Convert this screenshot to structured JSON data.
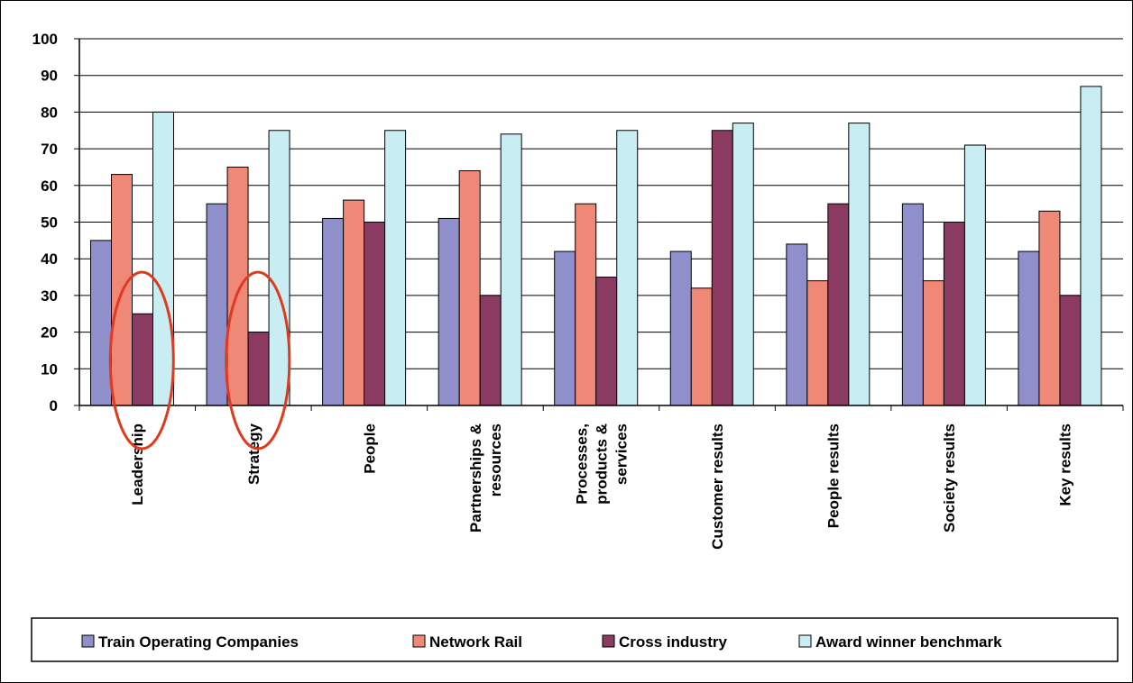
{
  "chart_data": {
    "type": "bar",
    "title": "",
    "xlabel": "",
    "ylabel": "",
    "ylim": [
      0,
      100
    ],
    "yticks": [
      0,
      10,
      20,
      30,
      40,
      50,
      60,
      70,
      80,
      90,
      100
    ],
    "grid": true,
    "legend_position": "bottom",
    "categories": [
      "Leadership",
      "Strategy",
      "People",
      "Partnerships & resources",
      "Processes, products & services",
      "Customer results",
      "People results",
      "Society results",
      "Key results"
    ],
    "category_lines": [
      [
        "Leadership"
      ],
      [
        "Strategy"
      ],
      [
        "People"
      ],
      [
        "Partnerships &",
        "resources"
      ],
      [
        "Processes,",
        "products &",
        "services"
      ],
      [
        "Customer results"
      ],
      [
        "People results"
      ],
      [
        "Society results"
      ],
      [
        "Key results"
      ]
    ],
    "series": [
      {
        "name": "Train Operating Companies",
        "color": "#8f8fcc",
        "values": [
          45,
          55,
          51,
          51,
          42,
          42,
          44,
          55,
          42
        ]
      },
      {
        "name": "Network Rail",
        "color": "#f08878",
        "values": [
          63,
          65,
          56,
          64,
          55,
          32,
          34,
          34,
          53
        ]
      },
      {
        "name": "Cross industry",
        "color": "#8b3a62",
        "values": [
          25,
          20,
          50,
          30,
          35,
          75,
          55,
          50,
          30
        ]
      },
      {
        "name": "Award winner benchmark",
        "color": "#c8eef3",
        "values": [
          80,
          75,
          75,
          74,
          75,
          77,
          77,
          71,
          87
        ]
      }
    ],
    "annotations": [
      {
        "type": "ellipse",
        "category_index": 0,
        "color": "#e03a1e"
      },
      {
        "type": "ellipse",
        "category_index": 1,
        "color": "#e03a1e"
      }
    ]
  }
}
